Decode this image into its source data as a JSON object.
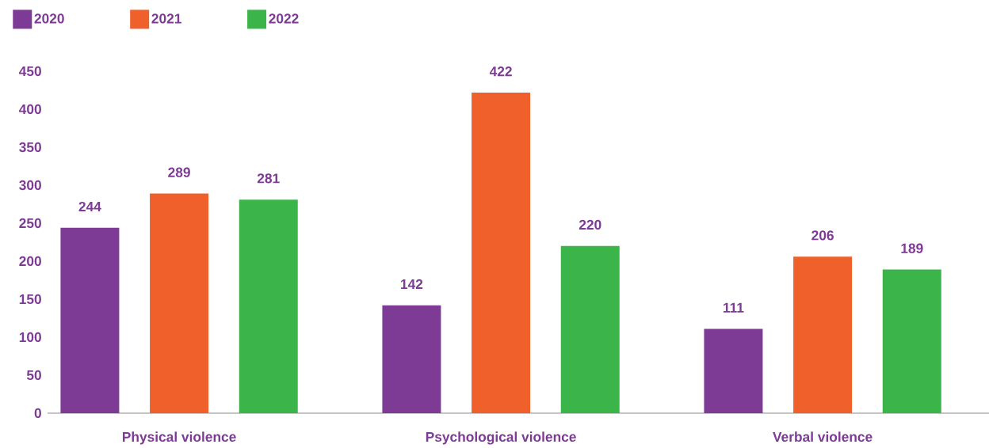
{
  "chart_data": {
    "type": "bar",
    "categories": [
      "Physical violence",
      "Psychological violence",
      "Verbal violence"
    ],
    "series": [
      {
        "name": "2020",
        "color": "#7e3b96",
        "values": [
          244,
          142,
          111
        ]
      },
      {
        "name": "2021",
        "color": "#f0602b",
        "values": [
          289,
          422,
          206
        ]
      },
      {
        "name": "2022",
        "color": "#3bb54a",
        "values": [
          281,
          220,
          189
        ]
      }
    ],
    "ylim": [
      0,
      450
    ],
    "yticks": [
      0,
      50,
      100,
      150,
      200,
      250,
      300,
      350,
      400,
      450
    ],
    "data_labels": true,
    "legend": "top left"
  }
}
